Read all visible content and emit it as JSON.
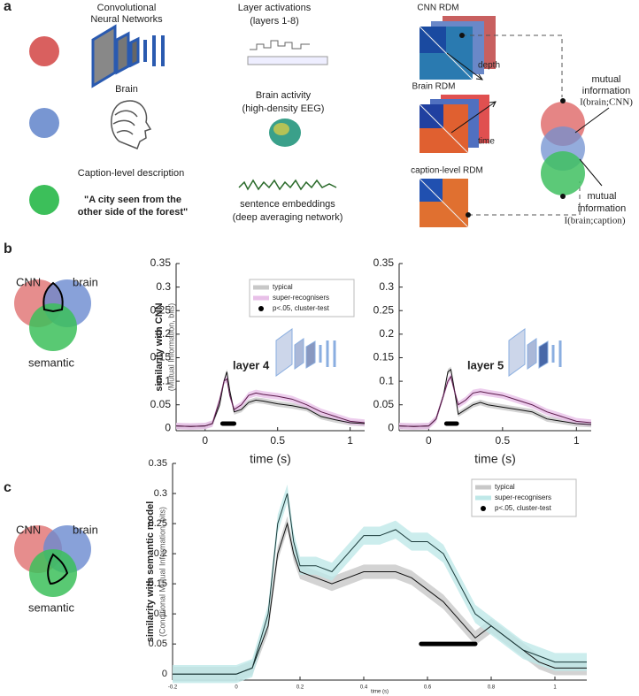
{
  "panel_labels": [
    "a",
    "b",
    "c"
  ],
  "panel_a": {
    "rows": [
      {
        "label": [
          "Convolutional",
          "Neural Networks"
        ],
        "representation": [
          "Layer activations",
          "(layers 1-8)"
        ],
        "rdm": "CNN RDM"
      },
      {
        "label": [
          "Brain"
        ],
        "representation": [
          "Brain activity",
          "(high-density EEG)"
        ],
        "rdm": "Brain RDM"
      },
      {
        "label": [
          "Caption-level description"
        ],
        "stimulus": [
          "\"A city seen from the",
          "other side of the forest\""
        ],
        "representation": [
          "sentence embeddings",
          "(deep averaging network)"
        ],
        "rdm": "caption-level RDM"
      }
    ],
    "arrows": [
      "depth",
      "time"
    ],
    "mi": [
      {
        "label": [
          "mutual",
          "information"
        ],
        "formula": "I(brain;CNN)"
      },
      {
        "label": [
          "mutual",
          "information"
        ],
        "formula": "I(brain;caption)"
      }
    ]
  },
  "venn_b": [
    "CNN",
    "brain",
    "semantic"
  ],
  "venn_c": [
    "CNN",
    "brain",
    "semantic"
  ],
  "chart_data": [
    {
      "type": "line",
      "ylabel": "similarity with CNN",
      "ylabel_sub": "(Mutual Information, bits)",
      "xlabel": "time (s)",
      "annotation": "layer 4",
      "x": [
        -0.2,
        -0.1,
        0,
        0.05,
        0.1,
        0.13,
        0.15,
        0.17,
        0.2,
        0.25,
        0.3,
        0.35,
        0.4,
        0.5,
        0.6,
        0.7,
        0.8,
        0.9,
        1.0,
        1.1
      ],
      "series": [
        {
          "name": "typical",
          "color": "#c8c8c8",
          "line_color": "#111111",
          "error": 0.006,
          "values": [
            0.005,
            0.004,
            0.005,
            0.01,
            0.05,
            0.1,
            0.12,
            0.08,
            0.035,
            0.04,
            0.055,
            0.06,
            0.058,
            0.052,
            0.048,
            0.042,
            0.025,
            0.018,
            0.012,
            0.01
          ]
        },
        {
          "name": "super-recognisers",
          "color": "#e8c0e8",
          "line_color": "#5a1a4a",
          "error": 0.007,
          "values": [
            0.005,
            0.004,
            0.005,
            0.01,
            0.06,
            0.1,
            0.105,
            0.07,
            0.04,
            0.05,
            0.07,
            0.075,
            0.072,
            0.068,
            0.062,
            0.05,
            0.035,
            0.025,
            0.015,
            0.012
          ]
        }
      ],
      "significance": {
        "name": "p<.05, cluster-test",
        "x": [
          0.12,
          0.2
        ],
        "y": 0.01
      },
      "xlim": [
        -0.2,
        1.1
      ],
      "ylim": [
        -0.005,
        0.35
      ],
      "xticks": [
        0,
        0.5,
        1
      ],
      "yticks": [
        0,
        0.05,
        0.1,
        0.15,
        0.2,
        0.25,
        0.3,
        0.35
      ],
      "legend": "upper right"
    },
    {
      "type": "line",
      "xlabel": "time (s)",
      "annotation": "layer 5",
      "x": [
        -0.2,
        -0.1,
        0,
        0.05,
        0.1,
        0.13,
        0.15,
        0.17,
        0.2,
        0.25,
        0.3,
        0.35,
        0.4,
        0.5,
        0.6,
        0.7,
        0.8,
        0.9,
        1.0,
        1.1
      ],
      "series": [
        {
          "color": "#c8c8c8",
          "line_color": "#111111",
          "error": 0.006,
          "values": [
            0.005,
            0.004,
            0.005,
            0.02,
            0.07,
            0.12,
            0.125,
            0.09,
            0.03,
            0.04,
            0.05,
            0.055,
            0.05,
            0.045,
            0.04,
            0.035,
            0.02,
            0.015,
            0.01,
            0.008
          ]
        },
        {
          "color": "#e8c0e8",
          "line_color": "#5a1a4a",
          "error": 0.007,
          "values": [
            0.005,
            0.004,
            0.005,
            0.02,
            0.07,
            0.1,
            0.11,
            0.085,
            0.05,
            0.06,
            0.075,
            0.078,
            0.075,
            0.07,
            0.06,
            0.05,
            0.035,
            0.025,
            0.015,
            0.012
          ]
        }
      ],
      "significance": {
        "x": [
          0.12,
          0.19
        ],
        "y": 0.01
      },
      "xlim": [
        -0.2,
        1.1
      ],
      "ylim": [
        -0.005,
        0.35
      ],
      "xticks": [
        0,
        0.5,
        1
      ],
      "yticks": [
        0,
        0.05,
        0.1,
        0.15,
        0.2,
        0.25,
        0.3,
        0.35
      ]
    },
    {
      "type": "line",
      "ylabel": "similarity with semantic model",
      "ylabel_sub": "(Conditional Mutual Information, bits)",
      "xlabel": "time (s)",
      "x": [
        -0.2,
        -0.1,
        0,
        0.05,
        0.1,
        0.13,
        0.16,
        0.18,
        0.2,
        0.25,
        0.3,
        0.35,
        0.4,
        0.45,
        0.5,
        0.55,
        0.6,
        0.65,
        0.7,
        0.75,
        0.8,
        0.85,
        0.9,
        0.95,
        1.0,
        1.1
      ],
      "series": [
        {
          "name": "typical",
          "color": "#c8c8c8",
          "line_color": "#111111",
          "error": 0.012,
          "values": [
            0,
            0,
            0,
            0.01,
            0.08,
            0.2,
            0.25,
            0.2,
            0.17,
            0.16,
            0.15,
            0.16,
            0.17,
            0.17,
            0.17,
            0.16,
            0.14,
            0.12,
            0.09,
            0.06,
            0.08,
            0.06,
            0.04,
            0.02,
            0.01,
            0.01
          ]
        },
        {
          "name": "super-recognisers",
          "color": "#bfe8e8",
          "line_color": "#1a3a3a",
          "error": 0.015,
          "values": [
            0,
            0,
            0,
            0.01,
            0.1,
            0.25,
            0.3,
            0.22,
            0.18,
            0.18,
            0.17,
            0.2,
            0.23,
            0.23,
            0.24,
            0.22,
            0.22,
            0.2,
            0.15,
            0.1,
            0.08,
            0.06,
            0.04,
            0.03,
            0.02,
            0.02
          ]
        }
      ],
      "significance": {
        "name": "p<.05, cluster-test",
        "x": [
          0.58,
          0.75
        ],
        "y": 0.05
      },
      "xlim": [
        -0.2,
        1.1
      ],
      "ylim": [
        -0.01,
        0.35
      ],
      "xticks": [
        -0.2,
        0,
        0.2,
        0.4,
        0.6,
        0.8,
        1
      ],
      "yticks": [
        0,
        0.05,
        0.1,
        0.15,
        0.2,
        0.25,
        0.3,
        0.35
      ],
      "legend": "upper right"
    }
  ]
}
